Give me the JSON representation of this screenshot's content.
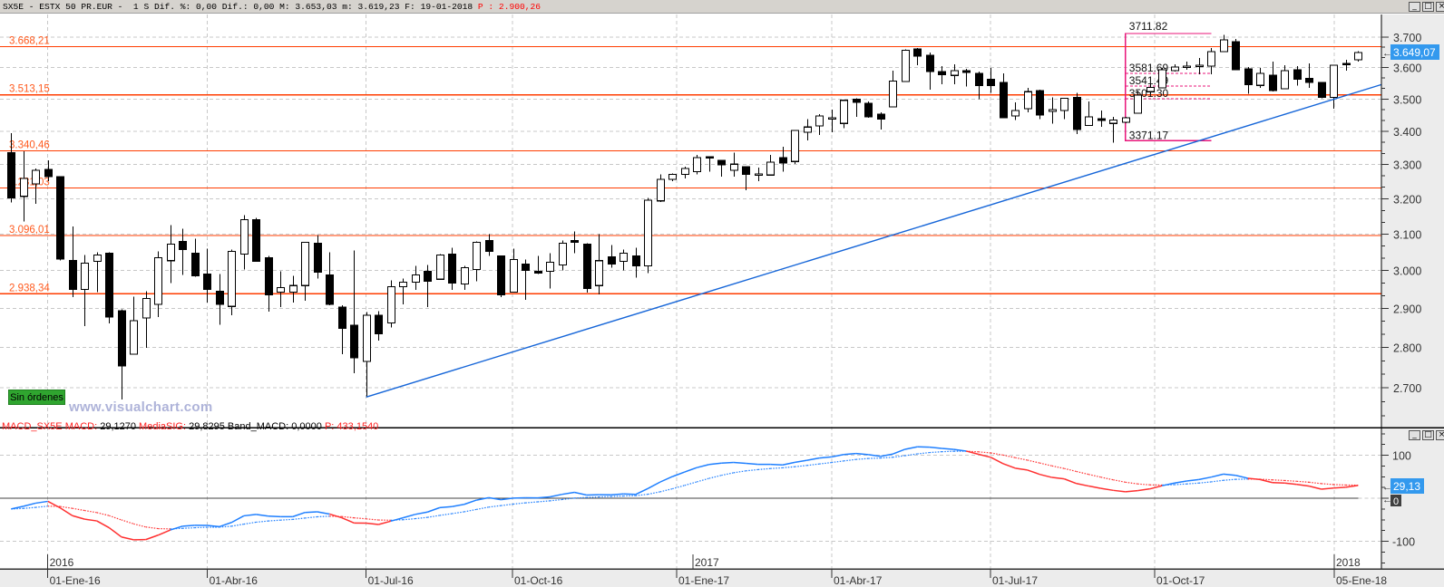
{
  "title_bar": {
    "text": "SX5E - ESTX 50 PR.EUR -  1 S Dif. %: 0,00 Dif.: 0,00 M: 3.653,03 m: 3.619,23 F: 19-01-2018 ",
    "price_text": "P : 2.900,26"
  },
  "window_controls": {
    "minimize": "_",
    "maximize": "□",
    "close": "×"
  },
  "status_badge": "Sin órdenes",
  "watermark": "www.visualchart.com",
  "macd_header": {
    "name": "MACD_SX5E",
    "macd_label": "MACD:",
    "macd_value": "29,1270",
    "signal_label": "MediaSIG:",
    "signal_value": "29,8295",
    "band_label": "Band_MACD:",
    "band_value": "0,0000",
    "p_label": "P:",
    "p_value": "433,1540"
  },
  "colors": {
    "level_line": "#ff3c00",
    "fib": "#e8157a",
    "trendline": "#1565d8",
    "macd_up": "#1e7fff",
    "macd_down": "#ff3030",
    "last_price_box": "#3399ee",
    "zero_box": "#404040"
  },
  "chart_data": [
    {
      "type": "candlestick",
      "symbol": "SX5E",
      "period": "weekly",
      "y_scale": "log",
      "y_ticks": [
        {
          "value": 3700,
          "label": "3.700"
        },
        {
          "value": 3600,
          "label": "3.600"
        },
        {
          "value": 3500,
          "label": "3.500"
        },
        {
          "value": 3400,
          "label": "3.400"
        },
        {
          "value": 3300,
          "label": "3.300"
        },
        {
          "value": 3200,
          "label": "3.200"
        },
        {
          "value": 3100,
          "label": "3.100"
        },
        {
          "value": 3000,
          "label": "3.000"
        },
        {
          "value": 2900,
          "label": "2.900"
        },
        {
          "value": 2800,
          "label": "2.800"
        },
        {
          "value": 2700,
          "label": "2.700"
        }
      ],
      "x_ticks": [
        "01-Ene-16",
        "01-Abr-16",
        "01-Jul-16",
        "01-Oct-16",
        "01-Ene-17",
        "01-Abr-17",
        "01-Jul-17",
        "01-Oct-17",
        "05-Ene-18"
      ],
      "year_ticks": [
        "2016",
        "2017",
        "2018"
      ],
      "grid": true,
      "last_price": {
        "value": 3649.07,
        "label": "3.649,07"
      },
      "ohlc": [
        [
          3335,
          3394,
          3190,
          3202
        ],
        [
          3207,
          3340,
          3136,
          3259
        ],
        [
          3243,
          3288,
          3186,
          3283
        ],
        [
          3286,
          3312,
          3251,
          3264
        ],
        [
          3264,
          3264,
          3027,
          3032
        ],
        [
          3027,
          3122,
          2929,
          2950
        ],
        [
          2950,
          3042,
          2854,
          3020
        ],
        [
          3025,
          3050,
          2943,
          3042
        ],
        [
          3047,
          3050,
          2861,
          2877
        ],
        [
          2894,
          2898,
          2672,
          2754
        ],
        [
          2783,
          2931,
          2783,
          2868
        ],
        [
          2875,
          2945,
          2799,
          2926
        ],
        [
          2910,
          3052,
          2877,
          3035
        ],
        [
          3027,
          3125,
          2967,
          3072
        ],
        [
          3080,
          3115,
          2988,
          3057
        ],
        [
          3047,
          3087,
          2983,
          2986
        ],
        [
          2991,
          3060,
          2915,
          2950
        ],
        [
          2945,
          2991,
          2858,
          2910
        ],
        [
          2905,
          3057,
          2882,
          3052
        ],
        [
          3045,
          3153,
          3003,
          3140
        ],
        [
          3140,
          3145,
          3025,
          3025
        ],
        [
          3035,
          3040,
          2891,
          2936
        ],
        [
          2943,
          2998,
          2903,
          2955
        ],
        [
          2943,
          2986,
          2915,
          2960
        ],
        [
          2960,
          3077,
          2920,
          3077
        ],
        [
          3075,
          3097,
          2979,
          2996
        ],
        [
          2988,
          3050,
          2908,
          2910
        ],
        [
          2903,
          2908,
          2783,
          2849
        ],
        [
          2856,
          3055,
          2736,
          2774
        ],
        [
          2765,
          2890,
          2678,
          2882
        ],
        [
          2882,
          2893,
          2817,
          2835
        ],
        [
          2862,
          2974,
          2851,
          2957
        ],
        [
          2957,
          2979,
          2910,
          2969
        ],
        [
          2969,
          3013,
          2948,
          2988
        ],
        [
          2998,
          3015,
          2903,
          2971
        ],
        [
          2977,
          3045,
          2977,
          3042
        ],
        [
          3045,
          3062,
          2948,
          2967
        ],
        [
          2964,
          3013,
          2948,
          3008
        ],
        [
          3003,
          3080,
          2971,
          3077
        ],
        [
          3082,
          3100,
          3040,
          3052
        ],
        [
          3040,
          3040,
          2929,
          2936
        ],
        [
          2943,
          3060,
          2943,
          3030
        ],
        [
          3018,
          3030,
          2922,
          3001
        ],
        [
          2998,
          3040,
          2991,
          2993
        ],
        [
          2998,
          3047,
          2952,
          3023
        ],
        [
          3015,
          3082,
          3001,
          3075
        ],
        [
          3082,
          3107,
          3047,
          3077
        ],
        [
          3072,
          3075,
          2941,
          2952
        ],
        [
          2960,
          3100,
          2936,
          3027
        ],
        [
          3037,
          3070,
          3008,
          3018
        ],
        [
          3025,
          3057,
          3001,
          3047
        ],
        [
          3040,
          3062,
          2981,
          3013
        ],
        [
          3013,
          3202,
          2993,
          3196
        ],
        [
          3194,
          3271,
          3191,
          3256
        ],
        [
          3256,
          3274,
          3251,
          3271
        ],
        [
          3271,
          3293,
          3259,
          3288
        ],
        [
          3279,
          3328,
          3271,
          3320
        ],
        [
          3323,
          3325,
          3279,
          3320
        ],
        [
          3312,
          3312,
          3264,
          3299
        ],
        [
          3283,
          3336,
          3264,
          3301
        ],
        [
          3293,
          3293,
          3225,
          3271
        ],
        [
          3272,
          3291,
          3251,
          3272
        ],
        [
          3269,
          3328,
          3269,
          3307
        ],
        [
          3320,
          3353,
          3279,
          3304
        ],
        [
          3309,
          3402,
          3301,
          3402
        ],
        [
          3397,
          3438,
          3372,
          3413
        ],
        [
          3416,
          3453,
          3389,
          3447
        ],
        [
          3441,
          3467,
          3397,
          3441
        ],
        [
          3424,
          3496,
          3410,
          3496
        ],
        [
          3499,
          3502,
          3444,
          3490
        ],
        [
          3487,
          3493,
          3441,
          3444
        ],
        [
          3453,
          3458,
          3405,
          3438
        ],
        [
          3475,
          3590,
          3475,
          3557
        ],
        [
          3555,
          3660,
          3555,
          3657
        ],
        [
          3661,
          3664,
          3608,
          3637
        ],
        [
          3640,
          3649,
          3529,
          3587
        ],
        [
          3587,
          3605,
          3546,
          3578
        ],
        [
          3575,
          3611,
          3546,
          3590
        ],
        [
          3590,
          3596,
          3540,
          3584
        ],
        [
          3581,
          3587,
          3499,
          3543
        ],
        [
          3563,
          3599,
          3520,
          3543
        ],
        [
          3552,
          3581,
          3441,
          3441
        ],
        [
          3447,
          3490,
          3435,
          3464
        ],
        [
          3470,
          3535,
          3458,
          3523
        ],
        [
          3526,
          3529,
          3438,
          3450
        ],
        [
          3461,
          3505,
          3424,
          3467
        ],
        [
          3464,
          3502,
          3438,
          3502
        ],
        [
          3505,
          3520,
          3391,
          3405
        ],
        [
          3418,
          3493,
          3418,
          3444
        ],
        [
          3438,
          3464,
          3413,
          3438
        ],
        [
          3424,
          3444,
          3365,
          3435
        ],
        [
          3427,
          3445,
          3425,
          3441
        ],
        [
          3456,
          3526,
          3456,
          3512
        ],
        [
          3523,
          3546,
          3515,
          3537
        ],
        [
          3535,
          3599,
          3535,
          3593
        ],
        [
          3590,
          3611,
          3587,
          3602
        ],
        [
          3605,
          3620,
          3593,
          3605
        ],
        [
          3605,
          3631,
          3578,
          3608
        ],
        [
          3605,
          3664,
          3578,
          3652
        ],
        [
          3652,
          3708,
          3652,
          3691
        ],
        [
          3685,
          3694,
          3593,
          3593
        ],
        [
          3596,
          3602,
          3517,
          3546
        ],
        [
          3543,
          3599,
          3535,
          3581
        ],
        [
          3575,
          3620,
          3523,
          3526
        ],
        [
          3532,
          3608,
          3532,
          3590
        ],
        [
          3593,
          3605,
          3543,
          3563
        ],
        [
          3566,
          3614,
          3535,
          3552
        ],
        [
          3552,
          3552,
          3502,
          3505
        ],
        [
          3505,
          3608,
          3470,
          3608
        ],
        [
          3614,
          3626,
          3590,
          3611
        ],
        [
          3625,
          3653.03,
          3619.23,
          3649.07
        ]
      ],
      "horizontal_levels": [
        {
          "value": 3668.21,
          "label": "3.668,21"
        },
        {
          "value": 3513.15,
          "label": "3.513,15"
        },
        {
          "value": 3340.46,
          "label": "3.340,46"
        },
        {
          "value": 3231.03,
          "label": "3.231,03"
        },
        {
          "value": 3096.01,
          "label": "3.096,01"
        },
        {
          "value": 2938.34,
          "label": "2.938,34"
        }
      ],
      "trendline": {
        "from": {
          "week": 30,
          "price": 2678
        },
        "to": {
          "week": 110,
          "price": 3511
        }
      },
      "fibonacci": {
        "from_week": 92,
        "to_week": 99,
        "levels": [
          {
            "value": 3711.82,
            "label": "3711.82"
          },
          {
            "value": 3581.69,
            "label": "3581.69"
          },
          {
            "value": 3541.49,
            "label": "3541.49"
          },
          {
            "value": 3501.3,
            "label": "3501.30"
          },
          {
            "value": 3371.17,
            "label": "3371.17"
          }
        ]
      }
    },
    {
      "type": "line",
      "indicator": "MACD",
      "series": [
        {
          "name": "MACD"
        },
        {
          "name": "MediaSIG"
        }
      ],
      "y_ticks": [
        {
          "value": 100,
          "label": "100"
        },
        {
          "value": -100,
          "label": "-100"
        }
      ],
      "zero_label": "0",
      "last_value": {
        "value": 29.13,
        "label": "29,13"
      }
    }
  ]
}
